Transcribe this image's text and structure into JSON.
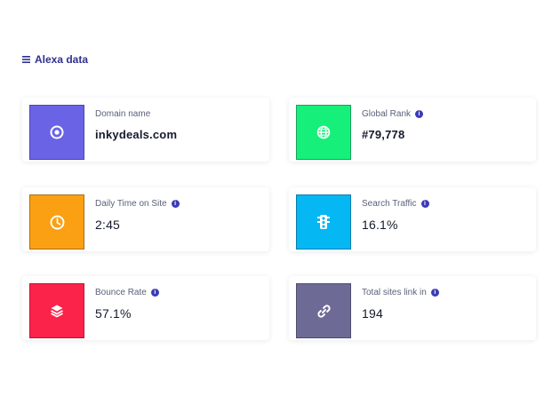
{
  "section": {
    "title": "Alexa data"
  },
  "cards": [
    {
      "label": "Domain name",
      "value": "inkydeals.com",
      "color": "#6b63e6",
      "icon": "target-icon",
      "info": false
    },
    {
      "label": "Global Rank",
      "value": "#79,778",
      "color": "#16f07a",
      "icon": "globe-icon",
      "info": true
    },
    {
      "label": "Daily Time on Site",
      "value": "2:45",
      "color": "#fba013",
      "icon": "clock-icon",
      "info": true
    },
    {
      "label": "Search Traffic",
      "value": "16.1%",
      "color": "#05b7f2",
      "icon": "traffic-light-icon",
      "info": true
    },
    {
      "label": "Bounce Rate",
      "value": "57.1%",
      "color": "#fb2349",
      "icon": "layers-icon",
      "info": true
    },
    {
      "label": "Total sites link in",
      "value": "194",
      "color": "#6d6b96",
      "icon": "link-icon",
      "info": true
    }
  ]
}
